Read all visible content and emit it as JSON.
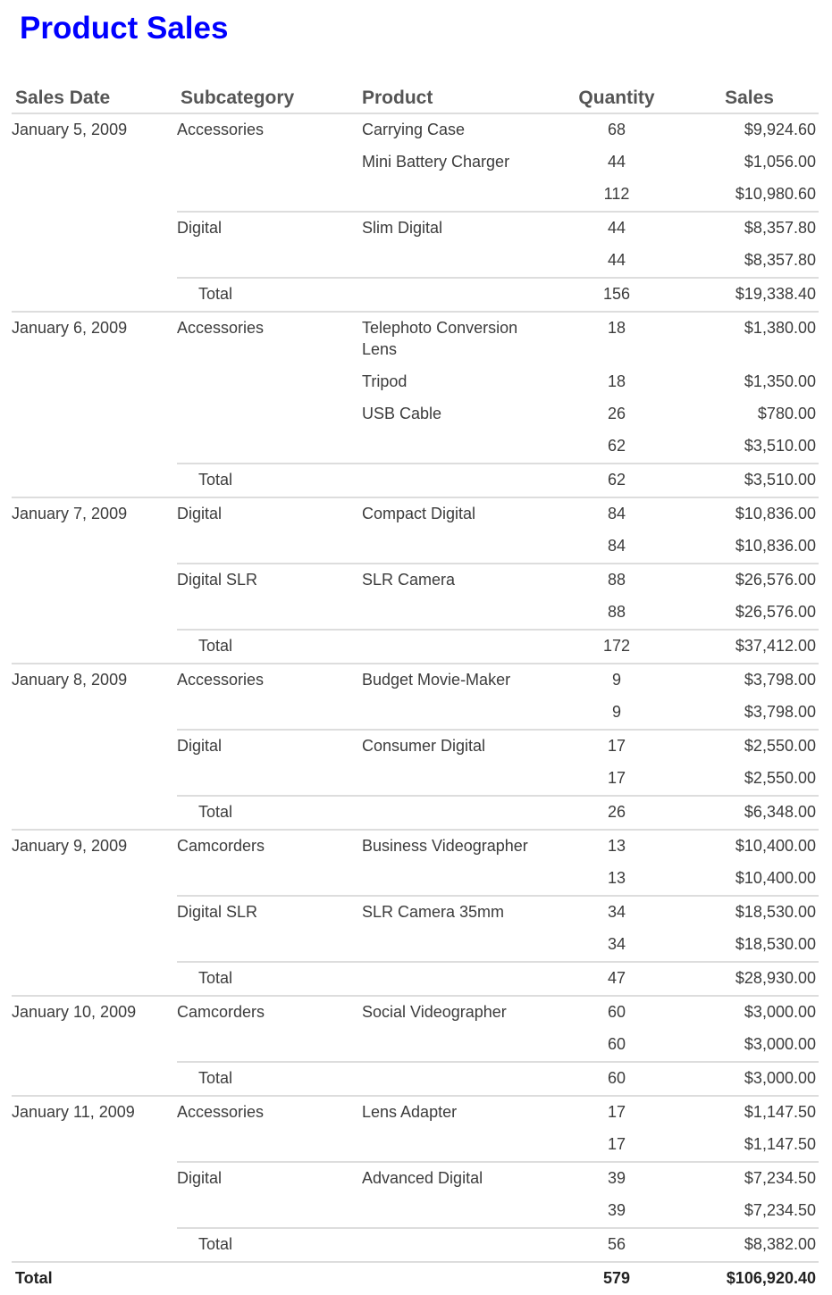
{
  "title": "Product Sales",
  "columns": {
    "date": "Sales Date",
    "subcategory": "Subcategory",
    "product": "Product",
    "quantity": "Quantity",
    "sales": "Sales"
  },
  "groups": [
    {
      "date": "January 5, 2009",
      "subgroups": [
        {
          "subcategory": "Accessories",
          "items": [
            {
              "product": "Carrying Case",
              "qty": "68",
              "sales": "$9,924.60"
            },
            {
              "product": "Mini Battery Charger",
              "qty": "44",
              "sales": "$1,056.00"
            }
          ],
          "subtotal": {
            "qty": "112",
            "sales": "$10,980.60"
          }
        },
        {
          "subcategory": "Digital",
          "items": [
            {
              "product": "Slim Digital",
              "qty": "44",
              "sales": "$8,357.80"
            }
          ],
          "subtotal": {
            "qty": "44",
            "sales": "$8,357.80"
          }
        }
      ],
      "total": {
        "label": "Total",
        "qty": "156",
        "sales": "$19,338.40"
      }
    },
    {
      "date": "January 6, 2009",
      "subgroups": [
        {
          "subcategory": "Accessories",
          "items": [
            {
              "product": "Telephoto Conversion Lens",
              "qty": "18",
              "sales": "$1,380.00"
            },
            {
              "product": "Tripod",
              "qty": "18",
              "sales": "$1,350.00"
            },
            {
              "product": "USB Cable",
              "qty": "26",
              "sales": "$780.00"
            }
          ],
          "subtotal": {
            "qty": "62",
            "sales": "$3,510.00"
          }
        }
      ],
      "total": {
        "label": "Total",
        "qty": "62",
        "sales": "$3,510.00"
      }
    },
    {
      "date": "January 7, 2009",
      "subgroups": [
        {
          "subcategory": "Digital",
          "items": [
            {
              "product": "Compact Digital",
              "qty": "84",
              "sales": "$10,836.00"
            }
          ],
          "subtotal": {
            "qty": "84",
            "sales": "$10,836.00"
          }
        },
        {
          "subcategory": "Digital SLR",
          "items": [
            {
              "product": "SLR Camera",
              "qty": "88",
              "sales": "$26,576.00"
            }
          ],
          "subtotal": {
            "qty": "88",
            "sales": "$26,576.00"
          }
        }
      ],
      "total": {
        "label": "Total",
        "qty": "172",
        "sales": "$37,412.00"
      }
    },
    {
      "date": "January 8, 2009",
      "subgroups": [
        {
          "subcategory": "Accessories",
          "items": [
            {
              "product": "Budget Movie-Maker",
              "qty": "9",
              "sales": "$3,798.00"
            }
          ],
          "subtotal": {
            "qty": "9",
            "sales": "$3,798.00"
          }
        },
        {
          "subcategory": "Digital",
          "items": [
            {
              "product": "Consumer Digital",
              "qty": "17",
              "sales": "$2,550.00"
            }
          ],
          "subtotal": {
            "qty": "17",
            "sales": "$2,550.00"
          }
        }
      ],
      "total": {
        "label": "Total",
        "qty": "26",
        "sales": "$6,348.00"
      }
    },
    {
      "date": "January 9, 2009",
      "subgroups": [
        {
          "subcategory": "Camcorders",
          "items": [
            {
              "product": "Business Videographer",
              "qty": "13",
              "sales": "$10,400.00"
            }
          ],
          "subtotal": {
            "qty": "13",
            "sales": "$10,400.00"
          }
        },
        {
          "subcategory": "Digital SLR",
          "items": [
            {
              "product": "SLR Camera 35mm",
              "qty": "34",
              "sales": "$18,530.00"
            }
          ],
          "subtotal": {
            "qty": "34",
            "sales": "$18,530.00"
          }
        }
      ],
      "total": {
        "label": "Total",
        "qty": "47",
        "sales": "$28,930.00"
      }
    },
    {
      "date": "January 10, 2009",
      "subgroups": [
        {
          "subcategory": "Camcorders",
          "items": [
            {
              "product": "Social Videographer",
              "qty": "60",
              "sales": "$3,000.00"
            }
          ],
          "subtotal": {
            "qty": "60",
            "sales": "$3,000.00"
          }
        }
      ],
      "total": {
        "label": "Total",
        "qty": "60",
        "sales": "$3,000.00"
      }
    },
    {
      "date": "January 11, 2009",
      "subgroups": [
        {
          "subcategory": "Accessories",
          "items": [
            {
              "product": "Lens Adapter",
              "qty": "17",
              "sales": "$1,147.50"
            }
          ],
          "subtotal": {
            "qty": "17",
            "sales": "$1,147.50"
          }
        },
        {
          "subcategory": "Digital",
          "items": [
            {
              "product": "Advanced Digital",
              "qty": "39",
              "sales": "$7,234.50"
            }
          ],
          "subtotal": {
            "qty": "39",
            "sales": "$7,234.50"
          }
        }
      ],
      "total": {
        "label": "Total",
        "qty": "56",
        "sales": "$8,382.00"
      }
    }
  ],
  "grand_total": {
    "label": "Total",
    "qty": "579",
    "sales": "$106,920.40"
  }
}
